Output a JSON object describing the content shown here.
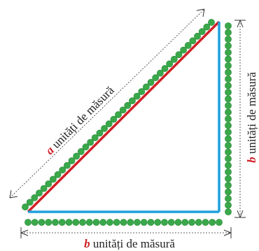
{
  "hypotenuse_label": {
    "variable": "a",
    "text": " unități de măsură"
  },
  "bottom_label": {
    "variable": "b",
    "text": " unități de măsură"
  },
  "right_label": {
    "variable": "b",
    "text": " unități de măsură"
  },
  "colors": {
    "hypotenuse_line": "#d12027",
    "leg_lines": "#1fa0dc",
    "dots": "#3aa84a",
    "dot_outline": "#2a8a3a",
    "label_variable": "#d12027",
    "dimension_lines": "#333333"
  },
  "dot_counts": {
    "hypotenuse": 41,
    "bottom": 29,
    "right": 29
  }
}
